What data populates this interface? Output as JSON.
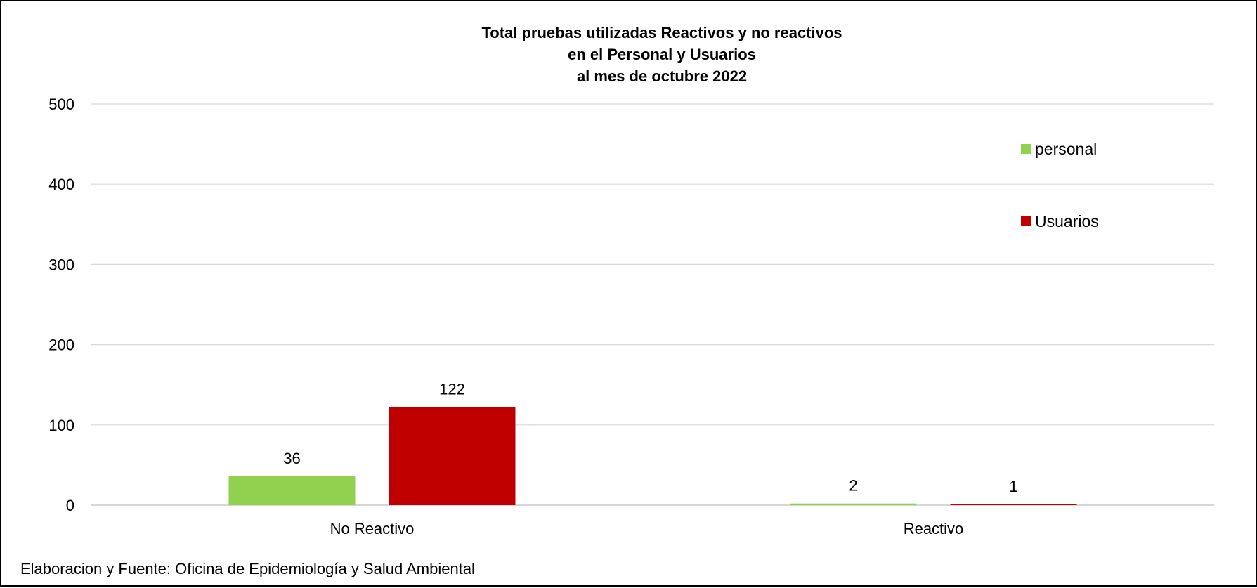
{
  "chart_data": {
    "type": "bar",
    "title_lines": [
      "Total pruebas utilizadas Reactivos y no reactivos",
      "en el Personal y Usuarios",
      "al mes de octubre 2022"
    ],
    "categories": [
      "No Reactivo",
      "Reactivo"
    ],
    "series": [
      {
        "name": "personal",
        "values": [
          36,
          2
        ],
        "labels": [
          "36",
          "2"
        ],
        "color": "#92d050"
      },
      {
        "name": "Usuarios",
        "values": [
          122,
          1
        ],
        "labels": [
          "122",
          "1"
        ],
        "color": "#c00000"
      }
    ],
    "ylim": [
      0,
      500
    ],
    "yticks": [
      0,
      100,
      200,
      300,
      400,
      500
    ],
    "ytick_labels": [
      "0",
      "100",
      "200",
      "300",
      "400",
      "500"
    ],
    "grid": true,
    "legend_position": "right"
  },
  "source_note": "Elaboracion y Fuente: Oficina de Epidemiología y Salud Ambiental"
}
